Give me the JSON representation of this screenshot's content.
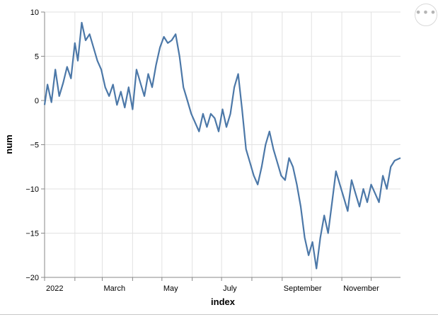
{
  "menu": {
    "icon": "ellipsis-icon",
    "label": "•••"
  },
  "chart_data": {
    "type": "line",
    "xlabel": "index",
    "ylabel": "num",
    "x_range": [
      "2022-01-01",
      "2022-12-31"
    ],
    "ylim": [
      -20,
      10
    ],
    "y_ticks": [
      10,
      5,
      0,
      -5,
      -10,
      -15,
      -20
    ],
    "x_ticks": [
      {
        "date": "2022-01-01",
        "label": "2022"
      },
      {
        "date": "2022-03-01",
        "label": "March"
      },
      {
        "date": "2022-05-01",
        "label": "May"
      },
      {
        "date": "2022-07-01",
        "label": "July"
      },
      {
        "date": "2022-09-01",
        "label": "September"
      },
      {
        "date": "2022-11-01",
        "label": "November"
      }
    ],
    "minor_x_ticks": [
      "2022-02-01",
      "2022-04-01",
      "2022-06-01",
      "2022-08-01",
      "2022-10-01",
      "2022-12-01"
    ],
    "grid": true,
    "line_color": "#4c78a8",
    "series": [
      {
        "x": [
          "2022-01-01",
          "2022-01-04",
          "2022-01-08",
          "2022-01-12",
          "2022-01-16",
          "2022-01-20",
          "2022-01-24",
          "2022-01-28",
          "2022-02-01",
          "2022-02-04",
          "2022-02-08",
          "2022-02-12",
          "2022-02-16",
          "2022-02-20",
          "2022-02-24",
          "2022-02-28",
          "2022-03-04",
          "2022-03-08",
          "2022-03-12",
          "2022-03-16",
          "2022-03-20",
          "2022-03-24",
          "2022-03-28",
          "2022-04-01",
          "2022-04-05",
          "2022-04-09",
          "2022-04-13",
          "2022-04-17",
          "2022-04-21",
          "2022-04-25",
          "2022-04-29",
          "2022-05-03",
          "2022-05-07",
          "2022-05-11",
          "2022-05-15",
          "2022-05-19",
          "2022-05-23",
          "2022-05-27",
          "2022-05-31",
          "2022-06-04",
          "2022-06-08",
          "2022-06-12",
          "2022-06-16",
          "2022-06-20",
          "2022-06-24",
          "2022-06-28",
          "2022-07-02",
          "2022-07-06",
          "2022-07-10",
          "2022-07-14",
          "2022-07-18",
          "2022-07-22",
          "2022-07-26",
          "2022-07-30",
          "2022-08-03",
          "2022-08-07",
          "2022-08-11",
          "2022-08-15",
          "2022-08-19",
          "2022-08-23",
          "2022-08-27",
          "2022-08-31",
          "2022-09-04",
          "2022-09-08",
          "2022-09-12",
          "2022-09-16",
          "2022-09-20",
          "2022-09-24",
          "2022-09-28",
          "2022-10-02",
          "2022-10-06",
          "2022-10-10",
          "2022-10-14",
          "2022-10-18",
          "2022-10-22",
          "2022-10-26",
          "2022-10-30",
          "2022-11-03",
          "2022-11-07",
          "2022-11-11",
          "2022-11-15",
          "2022-11-19",
          "2022-11-23",
          "2022-11-27",
          "2022-12-01",
          "2022-12-05",
          "2022-12-09",
          "2022-12-13",
          "2022-12-17",
          "2022-12-21",
          "2022-12-25",
          "2022-12-31"
        ],
        "y": [
          -0.5,
          1.8,
          -0.2,
          3.5,
          0.5,
          2.0,
          3.8,
          2.5,
          6.5,
          4.5,
          8.8,
          6.8,
          7.5,
          6.0,
          4.5,
          3.5,
          1.5,
          0.5,
          1.8,
          -0.5,
          1.0,
          -0.8,
          1.5,
          -1.0,
          3.5,
          2.0,
          0.5,
          3.0,
          1.5,
          4.0,
          6.0,
          7.2,
          6.5,
          6.8,
          7.5,
          5.0,
          1.5,
          0.0,
          -1.5,
          -2.5,
          -3.5,
          -1.5,
          -3.0,
          -1.5,
          -2.0,
          -3.5,
          -1.0,
          -3.0,
          -1.5,
          1.5,
          3.0,
          -1.0,
          -5.5,
          -7.0,
          -8.5,
          -9.5,
          -7.5,
          -5.0,
          -3.5,
          -5.5,
          -7.0,
          -8.5,
          -9.0,
          -6.5,
          -7.5,
          -9.5,
          -12.0,
          -15.5,
          -17.5,
          -16.0,
          -19.0,
          -15.5,
          -13.0,
          -15.0,
          -11.5,
          -8.0,
          -9.5,
          -11.0,
          -12.5,
          -9.0,
          -10.5,
          -12.0,
          -10.0,
          -11.5,
          -9.5,
          -10.5,
          -11.5,
          -8.5,
          -10.0,
          -7.5,
          -6.8,
          -6.5
        ]
      }
    ]
  }
}
